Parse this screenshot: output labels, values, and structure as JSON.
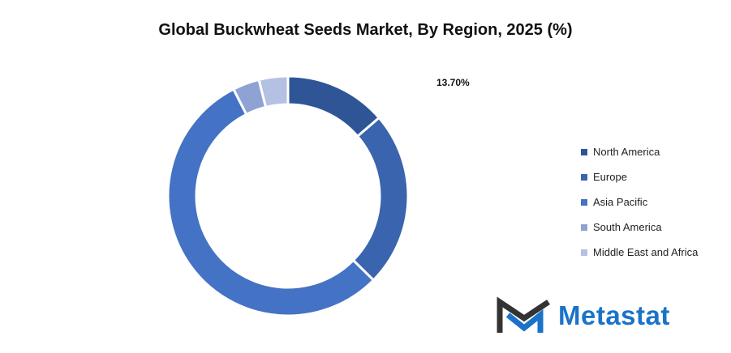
{
  "chart_data": {
    "type": "pie",
    "donut": true,
    "title": "Global Buckwheat Seeds Market, By Region, 2025 (%)",
    "categories": [
      "North America",
      "Europe",
      "Asia Pacific",
      "South America",
      "Middle East and Africa"
    ],
    "values": [
      13.7,
      23.7,
      55.1,
      3.6,
      3.9
    ],
    "data_labels": [
      "13.70%",
      "",
      "",
      "",
      ""
    ],
    "colors": [
      "#2f5597",
      "#3a64ad",
      "#4472c4",
      "#8fa2d4",
      "#b4c0e4"
    ],
    "legend_position": "right"
  },
  "logo": {
    "text": "Metastat"
  }
}
